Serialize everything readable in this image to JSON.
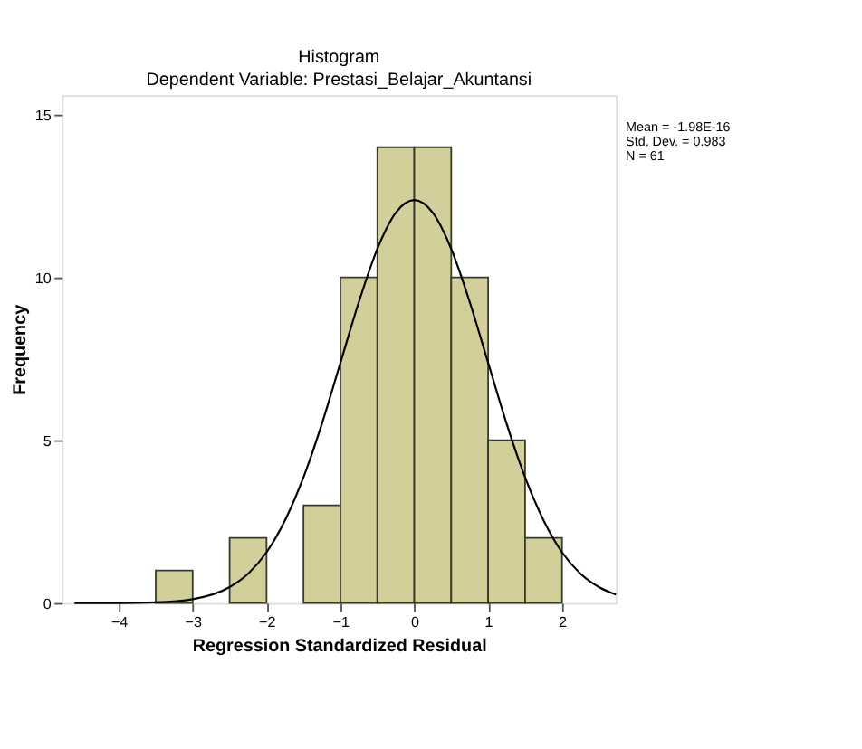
{
  "chart_data": {
    "type": "histogram",
    "title": "Histogram",
    "subtitle": "Dependent Variable: Prestasi_Belajar_Akuntansi",
    "xlabel": "Regression Standardized Residual",
    "ylabel": "Frequency",
    "bins": [
      -3.5,
      -3.0,
      -2.5,
      -2.0,
      -1.5,
      -1.0,
      -0.5,
      0.0,
      0.5,
      1.0,
      1.5,
      2.0
    ],
    "values": [
      1,
      0,
      2,
      0,
      3,
      10,
      14,
      14,
      10,
      5,
      2
    ],
    "color": "#d3cf9b",
    "series": [
      {
        "type": "line",
        "color": "#000000",
        "x": [
          -4.6,
          -4.0,
          -3.5,
          -3.0,
          -2.5,
          -2.25,
          -2.0,
          -1.75,
          -1.5,
          -1.25,
          -1.0,
          -0.75,
          -0.5,
          -0.25,
          0.0,
          0.25,
          0.5,
          0.75,
          1.0,
          1.25,
          1.5,
          1.75,
          2.0,
          2.25,
          2.5,
          2.73
        ],
        "values": [
          0.0,
          0.0,
          0.02,
          0.12,
          0.49,
          0.9,
          1.56,
          2.54,
          3.86,
          5.51,
          7.38,
          9.25,
          10.88,
          11.99,
          12.38,
          11.99,
          10.88,
          9.25,
          7.38,
          5.51,
          3.86,
          2.54,
          1.56,
          0.9,
          0.49,
          0.26
        ]
      }
    ],
    "xlim": [
      -4.77,
      2.73
    ],
    "xticks": [
      -4,
      -3,
      -2,
      -1,
      0,
      1,
      2
    ],
    "ylim": [
      0,
      15.6
    ],
    "yticks": [
      0,
      5,
      10,
      15
    ],
    "grid": false,
    "annotations": [
      "Mean = -1.98E-16",
      "Std. Dev. = 0.983",
      "N = 61"
    ]
  }
}
